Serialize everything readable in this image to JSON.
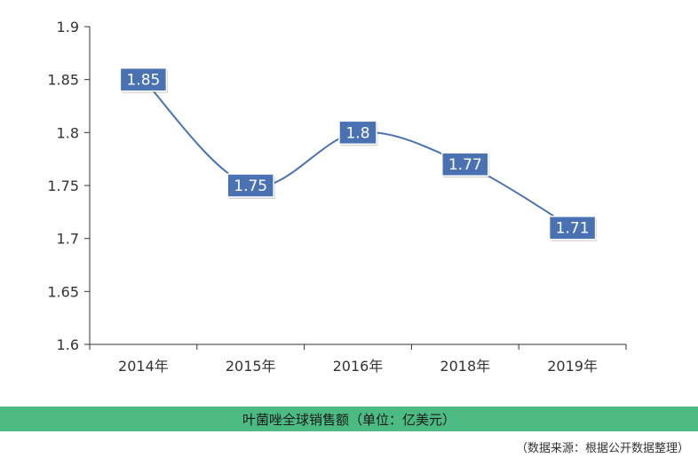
{
  "chart_data": {
    "type": "line",
    "categories": [
      "2014年",
      "2015年",
      "2016年",
      "2018年",
      "2019年"
    ],
    "values": [
      1.85,
      1.75,
      1.8,
      1.77,
      1.71
    ],
    "data_labels": [
      "1.85",
      "1.75",
      "1.8",
      "1.77",
      "1.71"
    ],
    "y_ticks": [
      "1.9",
      "1.85",
      "1.8",
      "1.75",
      "1.7",
      "1.65",
      "1.6"
    ],
    "ylim": [
      1.6,
      1.9
    ],
    "smooth": true,
    "grid": false,
    "title": "",
    "xlabel": "",
    "ylabel": ""
  },
  "caption": "叶菌唑全球销售额（单位：亿美元）",
  "source": "（数据来源：根据公开数据整理）",
  "colors": {
    "line": "#4a72b2",
    "label_bg": "#4a72b2",
    "label_border": "#ffffff",
    "caption_bg": "#4cbb83",
    "axis": "#333333"
  }
}
